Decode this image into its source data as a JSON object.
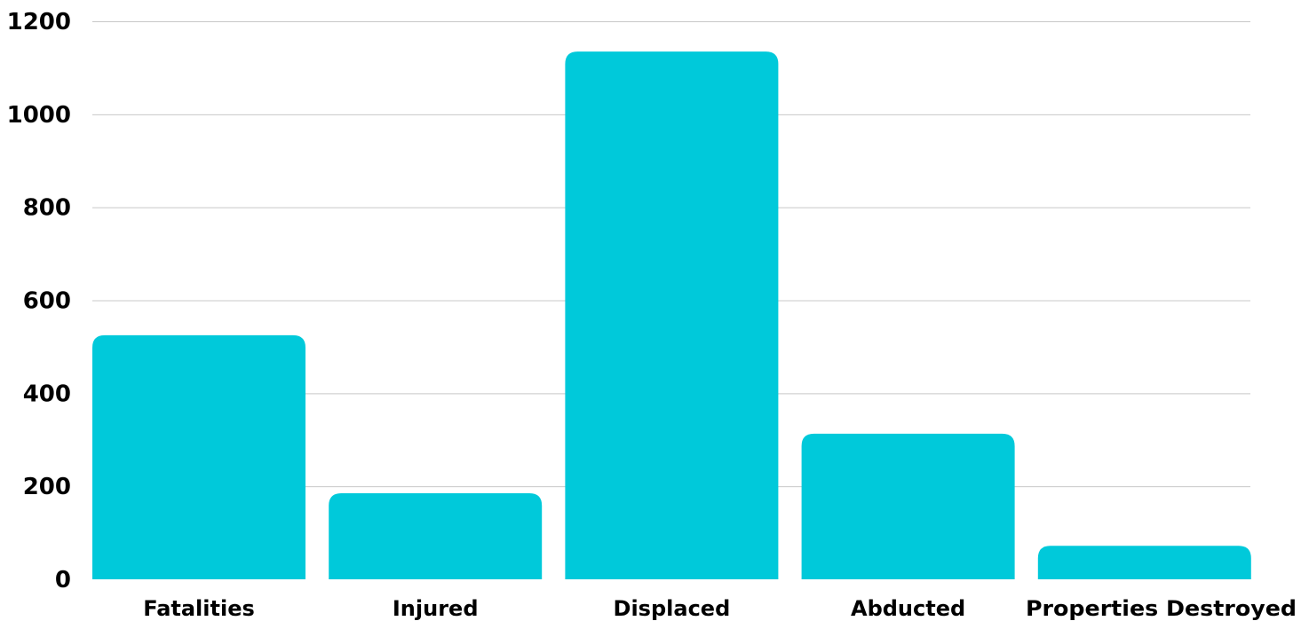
{
  "chart_data": {
    "type": "bar",
    "categories": [
      "Fatalities",
      "Injured",
      "Displaced",
      "Abducted",
      "Properties Destroyed"
    ],
    "values": [
      525,
      185,
      1135,
      313,
      72
    ],
    "title": "",
    "xlabel": "",
    "ylabel": "",
    "ylim": [
      0,
      1200
    ],
    "yticks": [
      "0",
      "200",
      "400",
      "600",
      "800",
      "1000",
      "1200"
    ],
    "grid": true,
    "legend": "none",
    "bar_color": "#00C9DA"
  }
}
